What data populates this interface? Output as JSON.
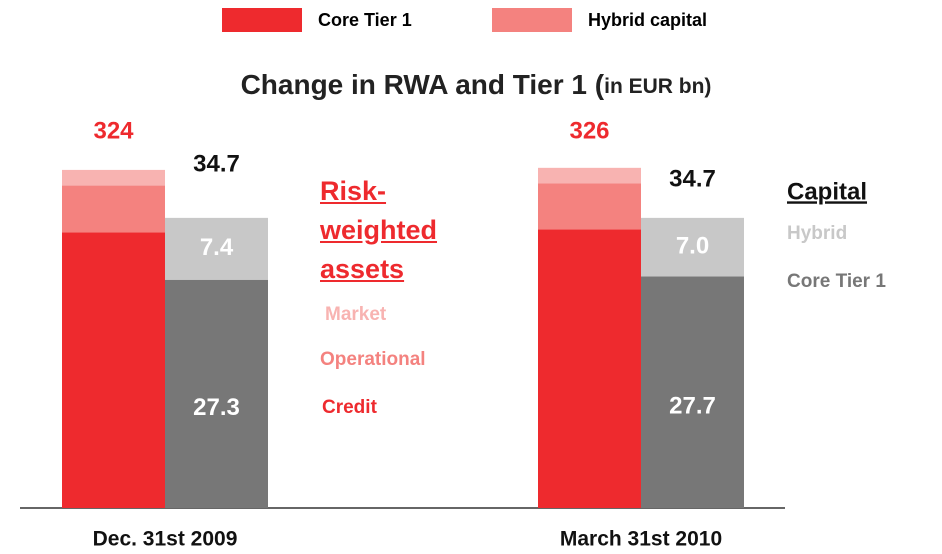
{
  "chart_data": {
    "type": "bar",
    "stacked": true,
    "title": "Change in RWA and Tier 1 (",
    "title_unit": "in EUR bn)",
    "legend": [
      {
        "name": "Core Tier 1",
        "color": "#ee2a2e"
      },
      {
        "name": "Hybrid capital",
        "color": "#f4827f"
      }
    ],
    "categories": [
      "Dec. 31st 2009",
      "March 31st 2010"
    ],
    "group_titles": {
      "rwa": "Risk-weighted assets",
      "capital": "Capital"
    },
    "ylim": [
      0,
      391
    ],
    "y2lim": [
      0,
      48.8
    ],
    "series": [
      {
        "name": "Credit",
        "color": "#ee2a2e",
        "stack": "rwa",
        "values": [
          264,
          267
        ]
      },
      {
        "name": "Operational",
        "color": "#f4827f",
        "stack": "rwa",
        "values": [
          45,
          44
        ]
      },
      {
        "name": "Market",
        "color": "#f8b3b1",
        "stack": "rwa",
        "values": [
          15,
          15
        ]
      },
      {
        "name": "Core Tier 1",
        "color": "#777777",
        "stack": "capital",
        "axis": "y2",
        "values": [
          27.3,
          27.7
        ]
      },
      {
        "name": "Hybrid",
        "color": "#c8c8c8",
        "stack": "capital",
        "axis": "y2",
        "values": [
          7.4,
          7.0
        ],
        "value_labels": [
          "7.4",
          "7.0"
        ]
      }
    ],
    "totals": {
      "rwa": [
        324,
        326
      ],
      "capital": [
        34.7,
        34.7
      ]
    }
  }
}
